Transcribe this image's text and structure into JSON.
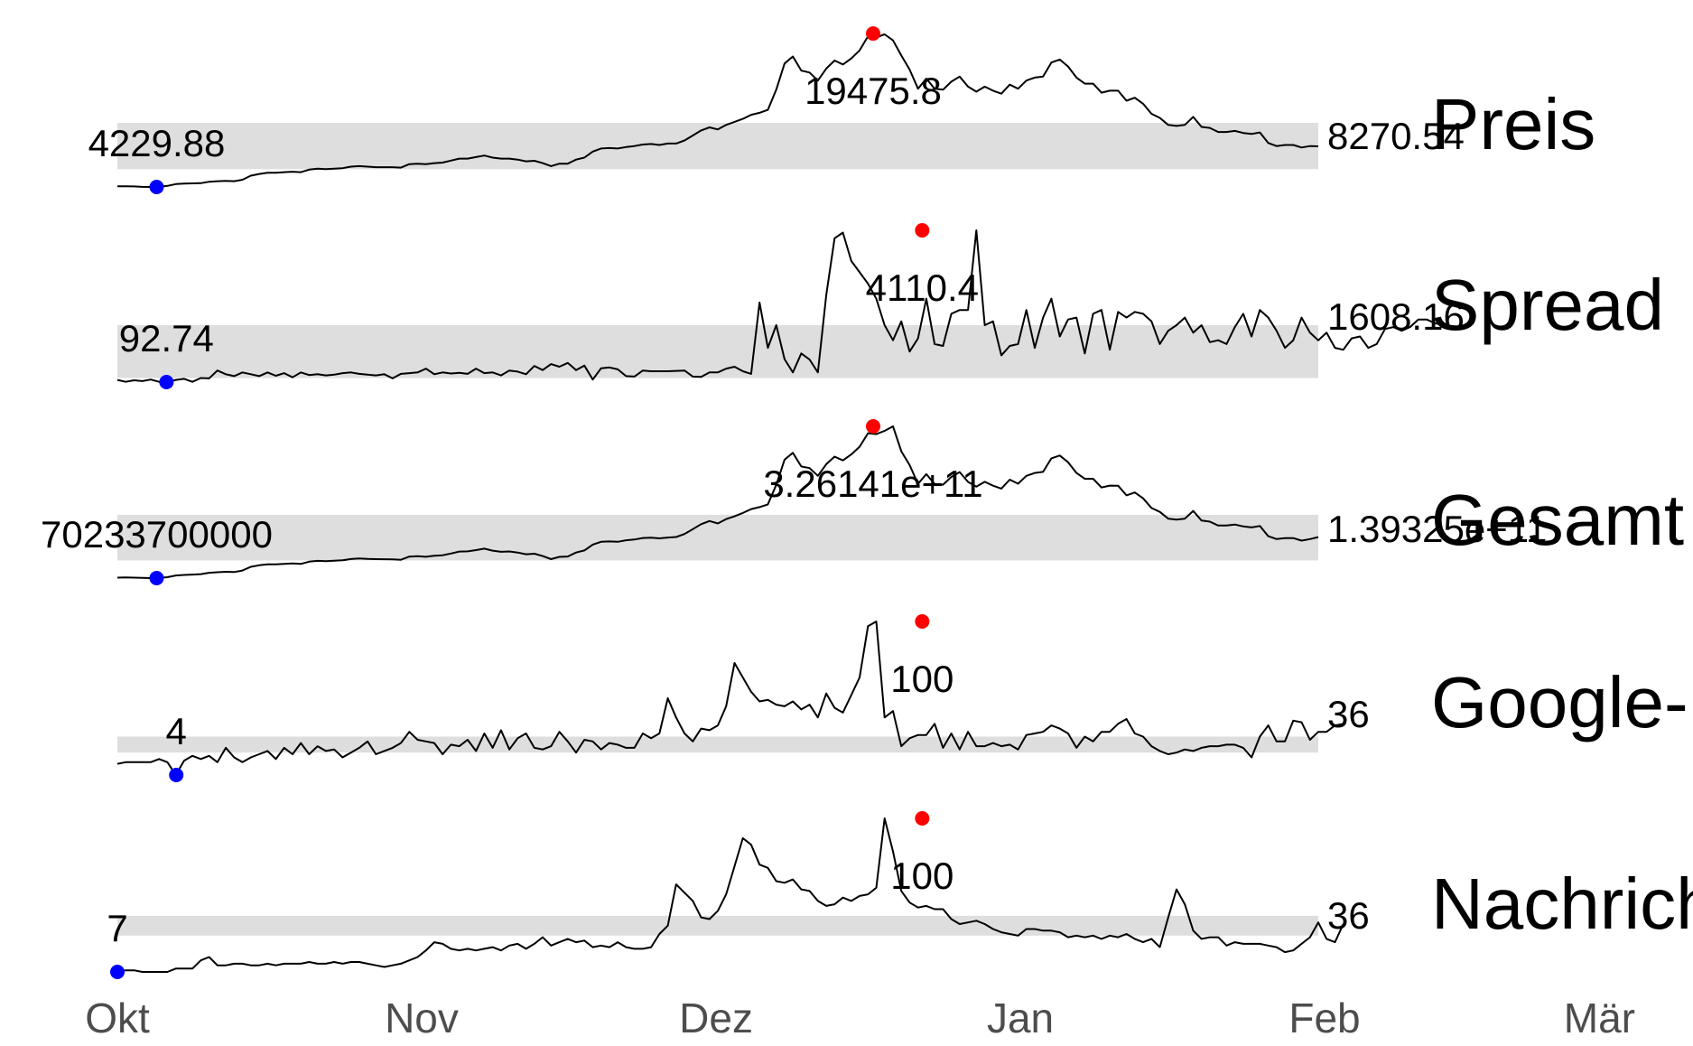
{
  "chart_data": {
    "type": "line",
    "layout": "sparklines",
    "x_axis": {
      "range": [
        "2017-10-01",
        "2018-03-01"
      ],
      "ticks": [
        "Okt",
        "Nov",
        "Dez",
        "Jan",
        "Feb",
        "Mär"
      ],
      "tick_dates": [
        "2017-10-01",
        "2017-11-01",
        "2017-12-01",
        "2018-01-01",
        "2018-02-01",
        "2018-03-01"
      ]
    },
    "colors": {
      "line": "#000000",
      "band": "#dedede",
      "min_point": "#0000ff",
      "max_point": "#ff0000",
      "axis_text": "#4d4d4d"
    },
    "series": [
      {
        "name": "Preis",
        "first_label": "4229.88",
        "max_label": "19475.8",
        "last_label": "8270.54",
        "min": {
          "date": "2017-10-05",
          "value": 4229.88
        },
        "max": {
          "date": "2017-12-17",
          "value": 19475.8
        },
        "band": [
          6000,
          10600
        ],
        "values": [
          4290,
          4300,
          4280,
          4240,
          4230,
          4260,
          4340,
          4520,
          4560,
          4590,
          4610,
          4750,
          4800,
          4830,
          4800,
          4950,
          5350,
          5520,
          5650,
          5650,
          5700,
          5750,
          5700,
          5950,
          6050,
          6000,
          6050,
          6100,
          6250,
          6300,
          6250,
          6200,
          6200,
          6200,
          6150,
          6500,
          6550,
          6500,
          6600,
          6650,
          6850,
          7050,
          7050,
          7200,
          7350,
          7150,
          7050,
          7050,
          6950,
          6780,
          6830,
          6600,
          6300,
          6550,
          6550,
          6950,
          7150,
          7750,
          8050,
          8100,
          8050,
          8200,
          8300,
          8450,
          8500,
          8400,
          8550,
          8550,
          8850,
          9350,
          9850,
          10150,
          9950,
          10400,
          10700,
          11000,
          11400,
          11600,
          11900,
          13900,
          16500,
          17200,
          15800,
          15600,
          14800,
          16000,
          16800,
          16400,
          17000,
          17800,
          19200,
          19100,
          19400,
          18800,
          17300,
          15900,
          14000,
          15000,
          14000,
          13900,
          14700,
          15200,
          14200,
          13700,
          14200,
          13800,
          13500,
          14400,
          14000,
          14800,
          15100,
          15200,
          16600,
          16900,
          16200,
          15100,
          14500,
          14500,
          13600,
          13800,
          13800,
          12800,
          13100,
          12500,
          11500,
          11100,
          10400,
          10300,
          10400,
          11200,
          10200,
          10100,
          9700,
          9700,
          9800,
          9600,
          9500,
          9650,
          8600,
          8300,
          8400,
          8400,
          8150,
          8300,
          8270
        ]
      },
      {
        "name": "Spread",
        "first_label": "92.74",
        "max_label": "4110.4",
        "last_label": "1608.16",
        "min": {
          "date": "2017-10-06",
          "value": 92.74
        },
        "max": {
          "date": "2017-12-22",
          "value": 4110.4
        },
        "band": [
          200,
          1600
        ],
        "values": [
          150,
          100,
          140,
          120,
          160,
          100,
          93,
          150,
          180,
          100,
          200,
          190,
          400,
          300,
          250,
          350,
          300,
          250,
          350,
          260,
          330,
          220,
          350,
          280,
          300,
          270,
          290,
          330,
          350,
          310,
          290,
          270,
          300,
          190,
          310,
          330,
          350,
          450,
          300,
          350,
          320,
          340,
          310,
          450,
          330,
          350,
          270,
          400,
          370,
          300,
          520,
          410,
          570,
          500,
          600,
          410,
          530,
          160,
          460,
          480,
          430,
          250,
          240,
          400,
          380,
          380,
          380,
          390,
          400,
          240,
          230,
          350,
          350,
          450,
          500,
          380,
          310,
          2200,
          1000,
          1600,
          700,
          350,
          850,
          690,
          350,
          2400,
          3900,
          4050,
          3300,
          3000,
          2700,
          2300,
          1600,
          1200,
          1700,
          900,
          1250,
          2300,
          1100,
          1050,
          1900,
          2000,
          2000,
          4110,
          1600,
          1700,
          800,
          1050,
          1100,
          2000,
          1000,
          1800,
          2300,
          1300,
          1750,
          1800,
          850,
          1900,
          2000,
          950,
          1950,
          1800,
          1950,
          1900,
          1700,
          1100,
          1450,
          1600,
          1800,
          1400,
          1600,
          1150,
          1200,
          1100,
          1550,
          1900,
          1300,
          2000,
          1800,
          1450,
          1000,
          1200,
          1800,
          1400,
          1200,
          1400,
          1000,
          950,
          1250,
          1300,
          1000,
          1100,
          1500,
          1550,
          1450,
          1550,
          1750,
          1750,
          1650,
          1608
        ]
      },
      {
        "name": "Gesamt",
        "first_label": "70233700000",
        "max_label": "3.26141e+11",
        "last_label": "1.39325e+11",
        "min": {
          "date": "2017-10-05",
          "value": 70233700000
        },
        "max": {
          "date": "2017-12-17",
          "value": 326141000000
        },
        "band": [
          100000000000,
          177000000000
        ],
        "values": [
          71000000000,
          71500000000,
          71000000000,
          70500000000,
          70233700000,
          70600000000,
          71800000000,
          74700000000,
          75500000000,
          76200000000,
          77000000000,
          79200000000,
          80200000000,
          80900000000,
          80500000000,
          83100000000,
          89300000000,
          91800000000,
          93600000000,
          93500000000,
          94200000000,
          94900000000,
          94100000000,
          98000000000,
          99300000000,
          98900000000,
          99700000000,
          100200000000,
          102300000000,
          103500000000,
          102500000000,
          102200000000,
          102100000000,
          101900000000,
          101200000000,
          106500000000,
          107300000000,
          106200000000,
          108000000000,
          108800000000,
          111700000000,
          115000000000,
          115300000000,
          117400000000,
          119900000000,
          116600000000,
          114500000000,
          115100000000,
          113300000000,
          110500000000,
          111400000000,
          107400000000,
          102200000000,
          106000000000,
          106700000000,
          113400000000,
          116800000000,
          126700000000,
          131500000000,
          132100000000,
          131500000000,
          134100000000,
          135300000000,
          137900000000,
          138500000000,
          137300000000,
          138700000000,
          139500000000,
          144500000000,
          152800000000,
          161100000000,
          166500000000,
          162400000000,
          169700000000,
          174400000000,
          180000000000,
          186600000000,
          190000000000,
          194600000000,
          227500000000,
          270000000000,
          281500000000,
          258500000000,
          255700000000,
          242600000000,
          262300000000,
          275100000000,
          268700000000,
          278700000000,
          291700000000,
          314600000000,
          313100000000,
          318500000000,
          326141000000,
          284100000000,
          260800000000,
          229300000000,
          245600000000,
          228900000000,
          227800000000,
          240900000000,
          249000000000,
          232500000000,
          224400000000,
          232600000000,
          226000000000,
          221200000000,
          236200000000,
          229400000000,
          242600000000,
          247600000000,
          249300000000,
          272200000000,
          276900000000,
          265600000000,
          247600000000,
          237700000000,
          237800000000,
          223000000000,
          226200000000,
          226100000000,
          209700000000,
          214700000000,
          204800000000,
          188400000000,
          181900000000,
          170400000000,
          168800000000,
          170400000000,
          183500000000,
          167200000000,
          165500000000,
          158900000000,
          159000000000,
          160600000000,
          157300000000,
          155700000000,
          158200000000,
          140900000000,
          136000000000,
          137700000000,
          137700000000,
          133500000000,
          136000000000,
          139325000000
        ]
      },
      {
        "name": "Google-",
        "first_label": "4",
        "max_label": "100",
        "last_label": "36",
        "min": {
          "date": "2017-10-07",
          "value": 4
        },
        "max": {
          "date": "2017-12-22",
          "value": 100
        },
        "band": [
          18,
          28
        ],
        "values": [
          11,
          12,
          12,
          12,
          12,
          14,
          12,
          4,
          13,
          16,
          14,
          16,
          12,
          21,
          15,
          12,
          15,
          17,
          19,
          14,
          21,
          17,
          24,
          17,
          22,
          19,
          20,
          15,
          18,
          21,
          25,
          17,
          19,
          21,
          24,
          31,
          26,
          25,
          24,
          17,
          23,
          22,
          26,
          19,
          30,
          21,
          32,
          20,
          27,
          30,
          21,
          20,
          22,
          31,
          25,
          18,
          26,
          25,
          20,
          24,
          23,
          21,
          21,
          30,
          27,
          30,
          52,
          40,
          30,
          25,
          33,
          32,
          35,
          47,
          74,
          65,
          56,
          50,
          51,
          48,
          47,
          50,
          45,
          48,
          40,
          55,
          46,
          43,
          54,
          65,
          97,
          100,
          40,
          44,
          22,
          27,
          29,
          29,
          36,
          21,
          30,
          20,
          31,
          22,
          22,
          24,
          22,
          23,
          20,
          29,
          30,
          31,
          35,
          33,
          30,
          21,
          28,
          25,
          31,
          31,
          36,
          39,
          30,
          28,
          22,
          19,
          17,
          18,
          20,
          19,
          21,
          22,
          22,
          23,
          23,
          21,
          15,
          28,
          35,
          25,
          25,
          38,
          37,
          26,
          31,
          31,
          35,
          36
        ]
      },
      {
        "name": "Nachrich",
        "first_label": "7",
        "max_label": "100",
        "last_label": "36",
        "min": {
          "date": "2017-10-01",
          "value": 7
        },
        "max": {
          "date": "2017-12-22",
          "value": 100
        },
        "band": [
          29,
          41
        ],
        "values": [
          7,
          8,
          8,
          7,
          7,
          7,
          7,
          9,
          9,
          9,
          14,
          16,
          11,
          11,
          12,
          12,
          11,
          11,
          12,
          11,
          12,
          12,
          12,
          13,
          12,
          12,
          13,
          12,
          13,
          13,
          12,
          11,
          10,
          11,
          12,
          14,
          16,
          20,
          25,
          24,
          21,
          20,
          21,
          20,
          21,
          22,
          20,
          23,
          24,
          21,
          24,
          28,
          23,
          25,
          27,
          25,
          26,
          22,
          23,
          22,
          25,
          22,
          21,
          21,
          22,
          30,
          35,
          60,
          55,
          50,
          40,
          39,
          44,
          54,
          71,
          88,
          84,
          72,
          70,
          62,
          61,
          63,
          57,
          56,
          50,
          47,
          48,
          52,
          50,
          53,
          54,
          58,
          100,
          80,
          56,
          49,
          46,
          47,
          45,
          45,
          39,
          36,
          37,
          38,
          36,
          33,
          31,
          30,
          29,
          33,
          33,
          32,
          32,
          31,
          28,
          29,
          28,
          29,
          27,
          29,
          28,
          30,
          27,
          25,
          27,
          22,
          40,
          57,
          48,
          32,
          27,
          28,
          28,
          23,
          25,
          24,
          24,
          24,
          23,
          22,
          19,
          20,
          24,
          28,
          37,
          27,
          25,
          36
        ]
      }
    ]
  }
}
